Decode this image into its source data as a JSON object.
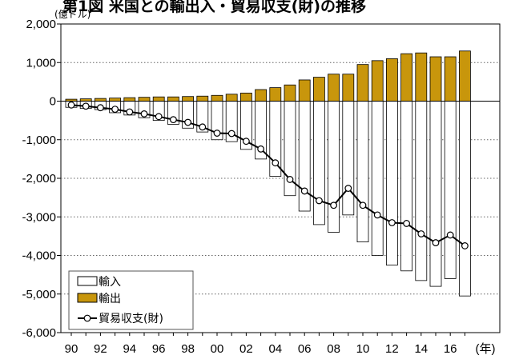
{
  "chart_data": {
    "type": "bar",
    "title": "第1図 米国との輸出入・貿易収支(財)の推移",
    "unit_label": "(億ドル)",
    "year_suffix": "(年)",
    "x": [
      1990,
      1991,
      1992,
      1993,
      1994,
      1995,
      1996,
      1997,
      1998,
      1999,
      2000,
      2001,
      2002,
      2003,
      2004,
      2005,
      2006,
      2007,
      2008,
      2009,
      2010,
      2011,
      2012,
      2013,
      2014,
      2015,
      2016,
      2017
    ],
    "x_tick_labels": [
      "90",
      "92",
      "94",
      "96",
      "98",
      "00",
      "02",
      "04",
      "06",
      "08",
      "10",
      "12",
      "14",
      "16"
    ],
    "y_tick_labels": [
      "2,000",
      "1,000",
      "0",
      "-1,000",
      "-2,000",
      "-3,000",
      "-4,000",
      "-5,000",
      "-6,000"
    ],
    "ylim": [
      -6000,
      2000
    ],
    "y_gridlines": [
      1000,
      -1000,
      -2000,
      -3000,
      -4000,
      -5000
    ],
    "colors": {
      "import": "#ffffff",
      "export": "#c8960c",
      "balance": "#000000"
    },
    "series": [
      {
        "name": "輸入",
        "kind": "bar",
        "values": [
          -160,
          -190,
          -220,
          -300,
          -360,
          -430,
          -500,
          -600,
          -700,
          -800,
          -1000,
          -1050,
          -1250,
          -1500,
          -1950,
          -2450,
          -2850,
          -3200,
          -3400,
          -2950,
          -3650,
          -4000,
          -4250,
          -4400,
          -4650,
          -4800,
          -4600,
          -5050
        ]
      },
      {
        "name": "輸出",
        "kind": "bar",
        "values": [
          50,
          60,
          70,
          80,
          90,
          100,
          110,
          110,
          120,
          130,
          150,
          180,
          210,
          300,
          350,
          420,
          550,
          620,
          700,
          700,
          950,
          1050,
          1100,
          1230,
          1250,
          1150,
          1150,
          1300
        ]
      },
      {
        "name": "貿易収支(財)",
        "kind": "line",
        "values": [
          -100,
          -130,
          -170,
          -210,
          -280,
          -330,
          -400,
          -480,
          -550,
          -670,
          -830,
          -840,
          -1040,
          -1240,
          -1600,
          -2030,
          -2330,
          -2580,
          -2700,
          -2260,
          -2700,
          -2950,
          -3150,
          -3170,
          -3440,
          -3670,
          -3470,
          -3750
        ]
      }
    ]
  }
}
